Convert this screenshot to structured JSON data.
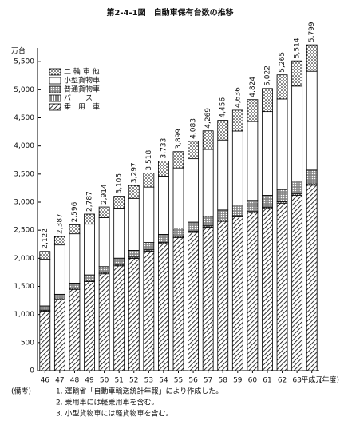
{
  "chart_data": {
    "type": "stacked-bar",
    "title": "第2-4-1図　自動車保有台数の推移",
    "ylabel": "万台",
    "xlabel": "(年度)",
    "categories": [
      "46",
      "47",
      "48",
      "49",
      "50",
      "51",
      "52",
      "53",
      "54",
      "55",
      "56",
      "57",
      "58",
      "59",
      "60",
      "61",
      "62",
      "63",
      "平成元"
    ],
    "series": [
      {
        "name": "乗　用　車",
        "color": "#000000",
        "pattern": "diagonal",
        "values": [
          1058,
          1258,
          1447,
          1585,
          1724,
          1866,
          1998,
          2128,
          2262,
          2366,
          2461,
          2554,
          2657,
          2736,
          2809,
          2888,
          2982,
          3123,
          3302
        ]
      },
      {
        "name": "バ　　ス",
        "color": "#000000",
        "pattern": "vertical",
        "values": [
          19,
          20,
          21,
          22,
          23,
          23,
          23,
          23,
          23,
          23,
          23,
          23,
          23,
          23,
          23,
          23,
          24,
          24,
          24
        ]
      },
      {
        "name": "普通貨物車",
        "color": "#000000",
        "pattern": "crosshatch",
        "values": [
          75,
          82,
          90,
          98,
          105,
          113,
          120,
          130,
          140,
          150,
          160,
          170,
          180,
          190,
          200,
          210,
          220,
          230,
          245
        ]
      },
      {
        "name": "小型貨物車",
        "color": "#000000",
        "pattern": "none",
        "values": [
          830,
          877,
          878,
          902,
          872,
          893,
          926,
          987,
          1038,
          1070,
          1129,
          1192,
          1246,
          1317,
          1402,
          1491,
          1609,
          1687,
          1758
        ]
      },
      {
        "name": "二 輪 車 他",
        "color": "#000000",
        "pattern": "dots",
        "values": [
          140,
          150,
          160,
          180,
          190,
          210,
          230,
          250,
          270,
          290,
          310,
          330,
          350,
          370,
          390,
          410,
          430,
          450,
          470
        ]
      }
    ],
    "totals": {
      "values": [
        2122,
        2387,
        2596,
        2787,
        2914,
        3105,
        3297,
        3518,
        3733,
        3899,
        4083,
        4269,
        4456,
        4636,
        4824,
        5022,
        5265,
        5514,
        5799
      ],
      "value_labels": [
        "2,122",
        "2,387",
        "2,596",
        "2,787",
        "2,914",
        "3,105",
        "3,297",
        "3,518",
        "3,733",
        "3,899",
        "4,083",
        "4,269",
        "4,456",
        "4,636",
        "4,824",
        "5,022",
        "5,265",
        "5,514",
        "5,799"
      ]
    },
    "ylim": [
      0,
      6000
    ],
    "yticks": [
      0,
      500,
      {
        "value": 1000,
        "label": "1,000"
      },
      {
        "value": 1500,
        "label": "1,500"
      },
      {
        "value": 2000,
        "label": "2,000"
      },
      {
        "value": 2500,
        "label": "2,500"
      },
      {
        "value": 3000,
        "label": "3,000"
      },
      {
        "value": 3500,
        "label": "3,500"
      },
      {
        "value": 4000,
        "label": "4,000"
      },
      {
        "value": 4500,
        "label": "4,500"
      },
      {
        "value": 5000,
        "label": "5,000"
      },
      {
        "value": 5500,
        "label": "5,500"
      }
    ],
    "legend": "upper-left",
    "notes": [
      "(備考)",
      "1. 運輸省「自動車輸送統計年報」により作成した。",
      "2. 乗用車には軽乗用車を含む。",
      "3. 小型貨物車には軽貨物車を含む。"
    ]
  }
}
